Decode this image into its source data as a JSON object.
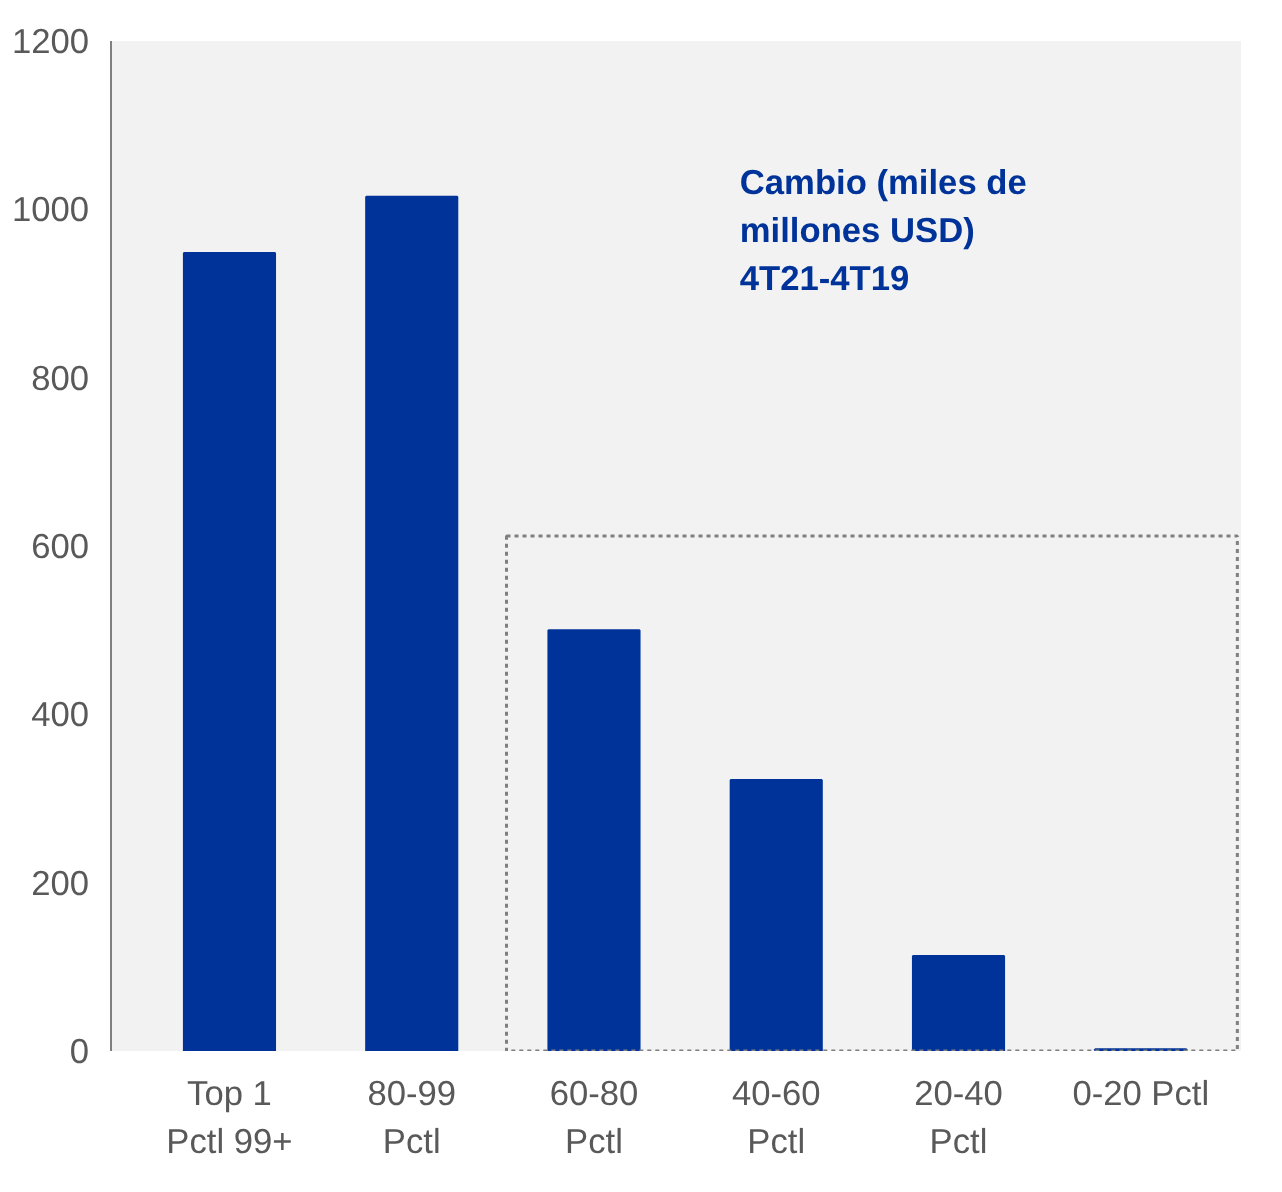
{
  "chart_data": {
    "type": "bar",
    "title": "Cambio (miles de millones USD) 4T21-4T19",
    "categories": [
      "Top 1 Pctl 99+",
      "80-99 Pctl",
      "60-80 Pctl",
      "40-60 Pctl",
      "20-40 Pctl",
      "0-20 Pctl"
    ],
    "values": [
      948,
      1015,
      500,
      322,
      113,
      2
    ],
    "color": "#003399",
    "ylim": [
      0,
      1200
    ],
    "yticks": [
      0,
      200,
      400,
      600,
      800,
      1000,
      1200
    ],
    "grid": false
  }
}
